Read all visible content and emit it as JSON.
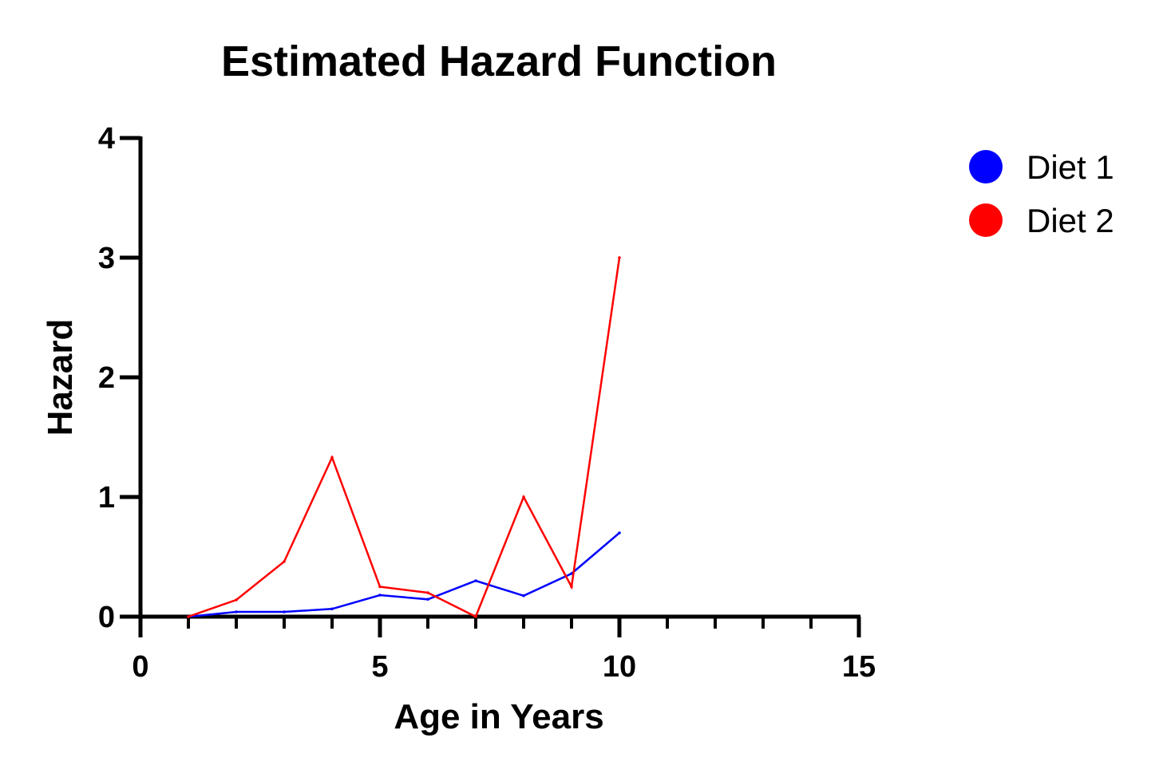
{
  "chart_data": {
    "type": "line",
    "title": "Estimated Hazard Function",
    "xlabel": "Age in Years",
    "ylabel": "Hazard",
    "xlim": [
      0,
      15
    ],
    "ylim": [
      0,
      4
    ],
    "x_major_ticks": [
      0,
      5,
      10,
      15
    ],
    "x_minor_ticks": [
      1,
      2,
      3,
      4,
      6,
      7,
      8,
      9,
      11,
      12,
      13,
      14
    ],
    "y_major_ticks": [
      0,
      1,
      2,
      3,
      4
    ],
    "grid": false,
    "legend_position": "top-right",
    "series": [
      {
        "name": "Diet 1",
        "color": "#0000ff",
        "points": [
          {
            "x": 1,
            "y": 0.0
          },
          {
            "x": 2,
            "y": 0.04
          },
          {
            "x": 3,
            "y": 0.04
          },
          {
            "x": 4,
            "y": 0.065
          },
          {
            "x": 5,
            "y": 0.18
          },
          {
            "x": 6,
            "y": 0.145
          },
          {
            "x": 7,
            "y": 0.3
          },
          {
            "x": 8,
            "y": 0.175
          },
          {
            "x": 9,
            "y": 0.36
          },
          {
            "x": 10,
            "y": 0.7
          }
        ]
      },
      {
        "name": "Diet 2",
        "color": "#ff0000",
        "points": [
          {
            "x": 1,
            "y": 0.0
          },
          {
            "x": 2,
            "y": 0.14
          },
          {
            "x": 3,
            "y": 0.46
          },
          {
            "x": 4,
            "y": 1.33
          },
          {
            "x": 5,
            "y": 0.25
          },
          {
            "x": 6,
            "y": 0.2
          },
          {
            "x": 7,
            "y": 0.0
          },
          {
            "x": 8,
            "y": 1.0
          },
          {
            "x": 9,
            "y": 0.25
          },
          {
            "x": 10,
            "y": 3.0
          }
        ]
      }
    ]
  }
}
